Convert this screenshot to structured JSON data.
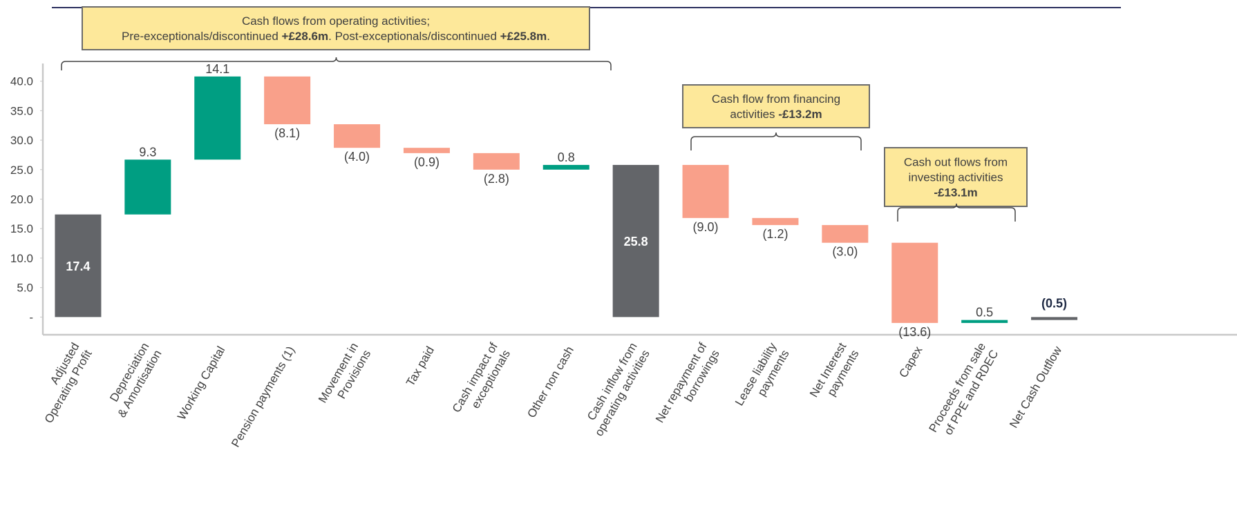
{
  "chart_data": {
    "type": "waterfall",
    "categories": [
      [
        "Adjusted",
        "Operating Profit"
      ],
      [
        "Depreciation",
        "& Amortisation"
      ],
      [
        "Working Capital"
      ],
      [
        "Pension payments (1)"
      ],
      [
        "Movement in",
        "Provisions"
      ],
      [
        "Tax paid"
      ],
      [
        "Cash impact of",
        "exceptionals"
      ],
      [
        "Other non cash"
      ],
      [
        "Cash inflow from",
        "operating activities"
      ],
      [
        "Net repayment of",
        "borrowings"
      ],
      [
        "Lease liability",
        "payments"
      ],
      [
        "Net Interest",
        "payments"
      ],
      [
        "Capex"
      ],
      [
        "Proceeds from sale",
        "of PPE and RDEC"
      ],
      [
        "Net Cash Outflow"
      ]
    ],
    "values": [
      17.4,
      9.3,
      14.1,
      -8.1,
      -4.0,
      -0.9,
      -2.8,
      0.8,
      25.8,
      -9.0,
      -1.2,
      -3.0,
      -13.6,
      0.5,
      -0.5
    ],
    "value_labels": [
      "17.4",
      "9.3",
      "14.1",
      "(8.1)",
      "(4.0)",
      "(0.9)",
      "(2.8)",
      "0.8",
      "25.8",
      "(9.0)",
      "(1.2)",
      "(3.0)",
      "(13.6)",
      "0.5",
      "(0.5)"
    ],
    "measure": [
      "total",
      "relative",
      "relative",
      "relative",
      "relative",
      "relative",
      "relative",
      "relative",
      "total",
      "relative",
      "relative",
      "relative",
      "relative",
      "relative",
      "total"
    ],
    "colors": {
      "increase": "#009e82",
      "decrease": "#f9a08a",
      "total": "#636569"
    },
    "ylim": [
      -3,
      43
    ],
    "yticks": [
      {
        "value": 0,
        "label": "-"
      },
      {
        "value": 5,
        "label": "5.0"
      },
      {
        "value": 10,
        "label": "10.0"
      },
      {
        "value": 15,
        "label": "15.0"
      },
      {
        "value": 20,
        "label": "20.0"
      },
      {
        "value": 25,
        "label": "25.0"
      },
      {
        "value": 30,
        "label": "30.0"
      },
      {
        "value": 35,
        "label": "35.0"
      },
      {
        "value": 40,
        "label": "40.0"
      }
    ],
    "grid": false,
    "annotations": [
      {
        "lines": [
          [
            {
              "text": "Cash flows from operating activities;"
            }
          ],
          [
            {
              "text": "Pre-exceptionals/discontinued "
            },
            {
              "text": "+£28.6m",
              "bold": true
            },
            {
              "text": ". Post-exceptionals/discontinued "
            },
            {
              "text": "+£25.8m",
              "bold": true
            },
            {
              "text": "."
            }
          ]
        ]
      },
      {
        "lines": [
          [
            {
              "text": "Cash flow from financing"
            }
          ],
          [
            {
              "text": "activities "
            },
            {
              "text": "-£13.2m",
              "bold": true
            }
          ]
        ]
      },
      {
        "lines": [
          [
            {
              "text": "Cash out flows from"
            }
          ],
          [
            {
              "text": "investing activities"
            }
          ],
          [
            {
              "text": "-£13.1m",
              "bold": true
            }
          ]
        ]
      }
    ]
  }
}
